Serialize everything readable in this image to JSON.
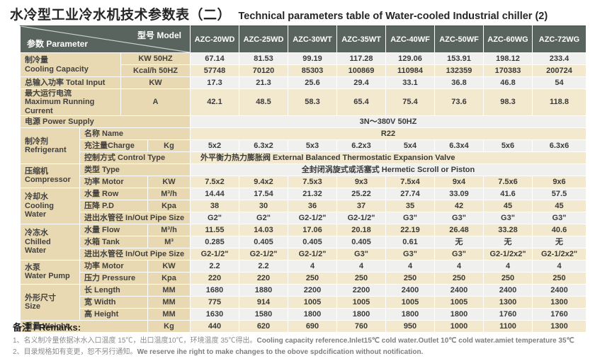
{
  "title": {
    "zh": "水冷型工业冷水机技术参数表（二）",
    "en": "Technical parameters table of Water-cooled Industrial chiller (2)"
  },
  "colors": {
    "header_bg": "#59645e",
    "label_bg": "#e9d9b3",
    "row_gray": "#f0f1ef",
    "row_cream": "#f3e9ce",
    "text": "#3a3a3a"
  },
  "table": {
    "corner": {
      "parameter": "参数 Parameter",
      "model": "型号 Model"
    },
    "models": [
      "AZC-20WD",
      "AZC-25WD",
      "AZC-30WT",
      "AZC-35WT",
      "AZC-40WF",
      "AZC-50WF",
      "AZC-60WG",
      "AZC-72WG"
    ],
    "rows": [
      {
        "group": {
          "text": "制冷量\nCooling Capacity",
          "rowspan": 2,
          "colspan": 2
        },
        "unit": {
          "text": "KW 50HZ",
          "colspan": 2
        },
        "values": [
          "67.14",
          "81.53",
          "99.19",
          "117.28",
          "129.06",
          "153.91",
          "198.12",
          "233.4"
        ]
      },
      {
        "unit": {
          "text": "Kcal/h 50HZ",
          "colspan": 2
        },
        "values": [
          "57748",
          "70120",
          "85303",
          "100869",
          "110984",
          "132359",
          "170383",
          "200724"
        ]
      },
      {
        "label": {
          "text": "总输入功率 Total Input",
          "colspan": 2
        },
        "unit": {
          "text": "KW",
          "colspan": 2
        },
        "values": [
          "17.3",
          "21.3",
          "25.6",
          "29.4",
          "33.1",
          "36.8",
          "46.8",
          "54"
        ]
      },
      {
        "tall": true,
        "label": {
          "text": "最大运行电流\nMaximum Running Current",
          "colspan": 2
        },
        "unit": {
          "text": "A",
          "colspan": 2
        },
        "values": [
          "42.1",
          "48.5",
          "58.3",
          "65.4",
          "75.4",
          "73.6",
          "98.3",
          "118.8"
        ]
      },
      {
        "label": {
          "text": "电源 Power Supply",
          "colspan": 4
        },
        "span": {
          "text": "3N～380V  50HZ",
          "align": "center"
        }
      },
      {
        "group": {
          "text": "制冷剂\nRefrigerant",
          "rowspan": 3,
          "colspan": 1
        },
        "label": {
          "text": "名称 Name",
          "colspan": 3
        },
        "span": {
          "text": "R22",
          "align": "center"
        }
      },
      {
        "label": {
          "text": "充注量Charge",
          "colspan": 2
        },
        "unit": {
          "text": "Kg",
          "colspan": 1
        },
        "values": [
          "5x2",
          "6.3x2",
          "5x3",
          "6.2x3",
          "5x4",
          "6.3x4",
          "5x6",
          "6.3x6"
        ]
      },
      {
        "label": {
          "text": "控制方式 Control Type",
          "colspan": 3
        },
        "span": {
          "text": "外平衡力热力膨胀阀 External Balanced Thermostatic Expansion Valve",
          "align": "left"
        }
      },
      {
        "group": {
          "text": "压缩机\nCompressor",
          "rowspan": 2,
          "colspan": 1
        },
        "label": {
          "text": "类型 Type",
          "colspan": 3
        },
        "span": {
          "text": "全封闭涡旋式或活塞式 Hermetic Scroll or Piston",
          "align": "center"
        }
      },
      {
        "label": {
          "text": "功率 Motor",
          "colspan": 2
        },
        "unit": {
          "text": "KW",
          "colspan": 1
        },
        "values": [
          "7.5x2",
          "9.4x2",
          "7.5x3",
          "9x3",
          "7.5x4",
          "9x4",
          "7.5x6",
          "9x6"
        ]
      },
      {
        "group": {
          "text": "冷却水\nCooling\nWater",
          "rowspan": 3,
          "colspan": 1
        },
        "label": {
          "text": "水量  Row",
          "colspan": 2
        },
        "unit": {
          "text": "M³/h",
          "colspan": 1
        },
        "values": [
          "14.44",
          "17.54",
          "21.32",
          "25.22",
          "27.74",
          "33.09",
          "41.6",
          "57.5"
        ]
      },
      {
        "label": {
          "text": "压降 P.D",
          "colspan": 2
        },
        "unit": {
          "text": "Kpa",
          "colspan": 1
        },
        "values": [
          "38",
          "30",
          "36",
          "37",
          "35",
          "42",
          "45",
          "45"
        ]
      },
      {
        "label": {
          "text": "进出水管径 In/Out Pipe Size",
          "colspan": 3
        },
        "values": [
          "G2\"",
          "G2\"",
          "G2-1/2\"",
          "G2-1/2\"",
          "G3\"",
          "G3\"",
          "G3\"",
          "G3\""
        ]
      },
      {
        "group": {
          "text": "冷冻水\nChilled\nWater",
          "rowspan": 3,
          "colspan": 1
        },
        "label": {
          "text": "水量  Flow",
          "colspan": 2
        },
        "unit": {
          "text": "M³/h",
          "colspan": 1
        },
        "values": [
          "11.55",
          "14.03",
          "17.06",
          "20.18",
          "22.19",
          "26.48",
          "33.28",
          "40.6"
        ]
      },
      {
        "label": {
          "text": "水箱  Tank",
          "colspan": 2
        },
        "unit": {
          "text": "M³",
          "colspan": 1
        },
        "values": [
          "0.285",
          "0.405",
          "0.405",
          "0.405",
          "0.61",
          "无",
          "无",
          "无"
        ]
      },
      {
        "label": {
          "text": "进出水管径 In/Out Pipe Size",
          "colspan": 3
        },
        "values": [
          "G2-1/2\"",
          "G2-1/2\"",
          "G2-1/2\"",
          "G3\"",
          "G3\"",
          "G3\"",
          "G2-1/2x2\"",
          "G2-1/2x2\""
        ]
      },
      {
        "group": {
          "text": "水泵\nWater Pump",
          "rowspan": 2,
          "colspan": 1
        },
        "label": {
          "text": "功率  Motor",
          "colspan": 2
        },
        "unit": {
          "text": "KW",
          "colspan": 1
        },
        "values": [
          "2.2",
          "2.2",
          "4",
          "4",
          "4",
          "4",
          "4",
          "4"
        ]
      },
      {
        "label": {
          "text": "压力  Pressure",
          "colspan": 2
        },
        "unit": {
          "text": "Kpa",
          "colspan": 1
        },
        "values": [
          "220",
          "220",
          "250",
          "250",
          "250",
          "250",
          "250",
          "250"
        ]
      },
      {
        "group": {
          "text": "外形尺寸\nSize",
          "rowspan": 3,
          "colspan": 1
        },
        "label": {
          "text": "长  Length",
          "colspan": 2
        },
        "unit": {
          "text": "MM",
          "colspan": 1
        },
        "values": [
          "1680",
          "1880",
          "2200",
          "2200",
          "2400",
          "2400",
          "2400",
          "2400"
        ]
      },
      {
        "label": {
          "text": "宽  Width",
          "colspan": 2
        },
        "unit": {
          "text": "MM",
          "colspan": 1
        },
        "values": [
          "775",
          "914",
          "1005",
          "1005",
          "1005",
          "1005",
          "1300",
          "1300"
        ]
      },
      {
        "label": {
          "text": "高  Height",
          "colspan": 2
        },
        "unit": {
          "text": "MM",
          "colspan": 1
        },
        "values": [
          "1630",
          "1580",
          "1800",
          "1800",
          "1800",
          "1800",
          "1760",
          "1760"
        ]
      },
      {
        "label": {
          "text": "重量 Weight",
          "colspan": 3
        },
        "unit": {
          "text": "Kg",
          "colspan": 1
        },
        "values": [
          "440",
          "620",
          "690",
          "760",
          "950",
          "1000",
          "1100",
          "1300"
        ]
      }
    ]
  },
  "remarks": {
    "heading": "备注 / Remarks:",
    "items": [
      {
        "zh": "1、名义制冷量依据冰水入口温度 15℃，出口温度10℃，环境温度 35℃得出。",
        "en": "Cooling capacity reference.Inlet15℃ cold water.Outlet 10℃ cold water.amiet temperature 35℃"
      },
      {
        "zh": "2、目录规格如有变更，恕不另行通知。",
        "en": "We reserve ihe right to make changes to the obove spdcification without notification."
      }
    ]
  }
}
